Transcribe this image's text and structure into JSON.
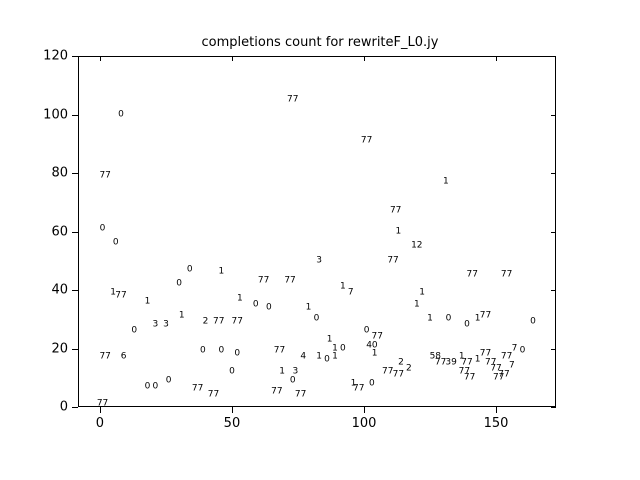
{
  "chart_data": {
    "type": "scatter",
    "title": "completions count for rewriteF_L0.jy",
    "xlabel": "",
    "ylabel": "",
    "marker": "text-label",
    "grid": false,
    "legend": "none",
    "xlim": [
      -8.3,
      172.7
    ],
    "ylim": [
      0,
      120
    ],
    "x_ticks": [
      0,
      50,
      100,
      150
    ],
    "y_ticks": [
      0,
      20,
      40,
      60,
      80,
      100,
      120
    ],
    "points": [
      {
        "x": 1,
        "y": 1,
        "label": "77"
      },
      {
        "x": 2,
        "y": 17,
        "label": "77"
      },
      {
        "x": 9,
        "y": 17,
        "label": "6"
      },
      {
        "x": 5,
        "y": 39,
        "label": "1"
      },
      {
        "x": 8,
        "y": 38,
        "label": "77"
      },
      {
        "x": 1,
        "y": 61,
        "label": "0"
      },
      {
        "x": 6,
        "y": 56,
        "label": "0"
      },
      {
        "x": 2,
        "y": 79,
        "label": "77"
      },
      {
        "x": 8,
        "y": 100,
        "label": "0"
      },
      {
        "x": 13,
        "y": 26,
        "label": "0"
      },
      {
        "x": 18,
        "y": 36,
        "label": "1"
      },
      {
        "x": 21,
        "y": 28,
        "label": "3"
      },
      {
        "x": 25,
        "y": 28,
        "label": "3"
      },
      {
        "x": 18,
        "y": 7,
        "label": "0"
      },
      {
        "x": 21,
        "y": 7,
        "label": "0"
      },
      {
        "x": 26,
        "y": 9,
        "label": "0"
      },
      {
        "x": 30,
        "y": 42,
        "label": "0"
      },
      {
        "x": 31,
        "y": 31,
        "label": "1"
      },
      {
        "x": 34,
        "y": 47,
        "label": "0"
      },
      {
        "x": 37,
        "y": 6,
        "label": "77"
      },
      {
        "x": 43,
        "y": 4,
        "label": "77"
      },
      {
        "x": 39,
        "y": 19,
        "label": "0"
      },
      {
        "x": 46,
        "y": 19,
        "label": "0"
      },
      {
        "x": 40,
        "y": 29,
        "label": "2"
      },
      {
        "x": 45,
        "y": 29,
        "label": "77"
      },
      {
        "x": 46,
        "y": 46,
        "label": "1"
      },
      {
        "x": 52,
        "y": 29,
        "label": "77"
      },
      {
        "x": 52,
        "y": 18,
        "label": "0"
      },
      {
        "x": 50,
        "y": 12,
        "label": "0"
      },
      {
        "x": 53,
        "y": 37,
        "label": "1"
      },
      {
        "x": 59,
        "y": 35,
        "label": "0"
      },
      {
        "x": 62,
        "y": 43,
        "label": "77"
      },
      {
        "x": 64,
        "y": 34,
        "label": "0"
      },
      {
        "x": 67,
        "y": 5,
        "label": "77"
      },
      {
        "x": 68,
        "y": 19,
        "label": "77"
      },
      {
        "x": 69,
        "y": 12,
        "label": "1"
      },
      {
        "x": 74,
        "y": 12,
        "label": "3"
      },
      {
        "x": 73,
        "y": 9,
        "label": "0"
      },
      {
        "x": 76,
        "y": 4,
        "label": "77"
      },
      {
        "x": 72,
        "y": 43,
        "label": "77"
      },
      {
        "x": 73,
        "y": 105,
        "label": "77"
      },
      {
        "x": 77,
        "y": 17,
        "label": "4"
      },
      {
        "x": 79,
        "y": 34,
        "label": "1"
      },
      {
        "x": 82,
        "y": 30,
        "label": "0"
      },
      {
        "x": 83,
        "y": 50,
        "label": "3"
      },
      {
        "x": 83,
        "y": 17,
        "label": "1"
      },
      {
        "x": 86,
        "y": 16,
        "label": "0"
      },
      {
        "x": 89,
        "y": 17,
        "label": "1"
      },
      {
        "x": 87,
        "y": 23,
        "label": "1"
      },
      {
        "x": 89,
        "y": 20,
        "label": "1"
      },
      {
        "x": 92,
        "y": 20,
        "label": "0"
      },
      {
        "x": 92,
        "y": 41,
        "label": "1"
      },
      {
        "x": 95,
        "y": 39,
        "label": "7"
      },
      {
        "x": 96,
        "y": 8,
        "label": "1"
      },
      {
        "x": 98,
        "y": 6,
        "label": "77"
      },
      {
        "x": 101,
        "y": 26,
        "label": "0"
      },
      {
        "x": 101,
        "y": 91,
        "label": "77"
      },
      {
        "x": 103,
        "y": 21,
        "label": "40"
      },
      {
        "x": 104,
        "y": 18,
        "label": "1"
      },
      {
        "x": 103,
        "y": 8,
        "label": "0"
      },
      {
        "x": 105,
        "y": 24,
        "label": "77"
      },
      {
        "x": 109,
        "y": 12,
        "label": "77"
      },
      {
        "x": 111,
        "y": 50,
        "label": "77"
      },
      {
        "x": 112,
        "y": 67,
        "label": "77"
      },
      {
        "x": 113,
        "y": 60,
        "label": "1"
      },
      {
        "x": 114,
        "y": 15,
        "label": "2"
      },
      {
        "x": 113,
        "y": 11,
        "label": "77"
      },
      {
        "x": 117,
        "y": 13,
        "label": "2"
      },
      {
        "x": 120,
        "y": 55,
        "label": "12"
      },
      {
        "x": 120,
        "y": 35,
        "label": "1"
      },
      {
        "x": 122,
        "y": 39,
        "label": "1"
      },
      {
        "x": 125,
        "y": 30,
        "label": "1"
      },
      {
        "x": 127,
        "y": 17,
        "label": "58"
      },
      {
        "x": 129,
        "y": 15,
        "label": "77"
      },
      {
        "x": 131,
        "y": 77,
        "label": "1"
      },
      {
        "x": 132,
        "y": 30,
        "label": "0"
      },
      {
        "x": 133,
        "y": 15,
        "label": "39"
      },
      {
        "x": 137,
        "y": 17,
        "label": "1"
      },
      {
        "x": 139,
        "y": 15,
        "label": "77"
      },
      {
        "x": 138,
        "y": 12,
        "label": "77"
      },
      {
        "x": 140,
        "y": 10,
        "label": "77"
      },
      {
        "x": 139,
        "y": 28,
        "label": "0"
      },
      {
        "x": 141,
        "y": 45,
        "label": "77"
      },
      {
        "x": 143,
        "y": 30,
        "label": "1"
      },
      {
        "x": 143,
        "y": 16,
        "label": "1"
      },
      {
        "x": 146,
        "y": 31,
        "label": "77"
      },
      {
        "x": 146,
        "y": 18,
        "label": "77"
      },
      {
        "x": 148,
        "y": 15,
        "label": "77"
      },
      {
        "x": 150,
        "y": 13,
        "label": "77"
      },
      {
        "x": 151,
        "y": 10,
        "label": "77"
      },
      {
        "x": 153,
        "y": 11,
        "label": "77"
      },
      {
        "x": 154,
        "y": 45,
        "label": "77"
      },
      {
        "x": 154,
        "y": 17,
        "label": "77"
      },
      {
        "x": 156,
        "y": 14,
        "label": "7"
      },
      {
        "x": 157,
        "y": 20,
        "label": "7"
      },
      {
        "x": 160,
        "y": 19,
        "label": "0"
      },
      {
        "x": 164,
        "y": 29,
        "label": "0"
      }
    ]
  }
}
